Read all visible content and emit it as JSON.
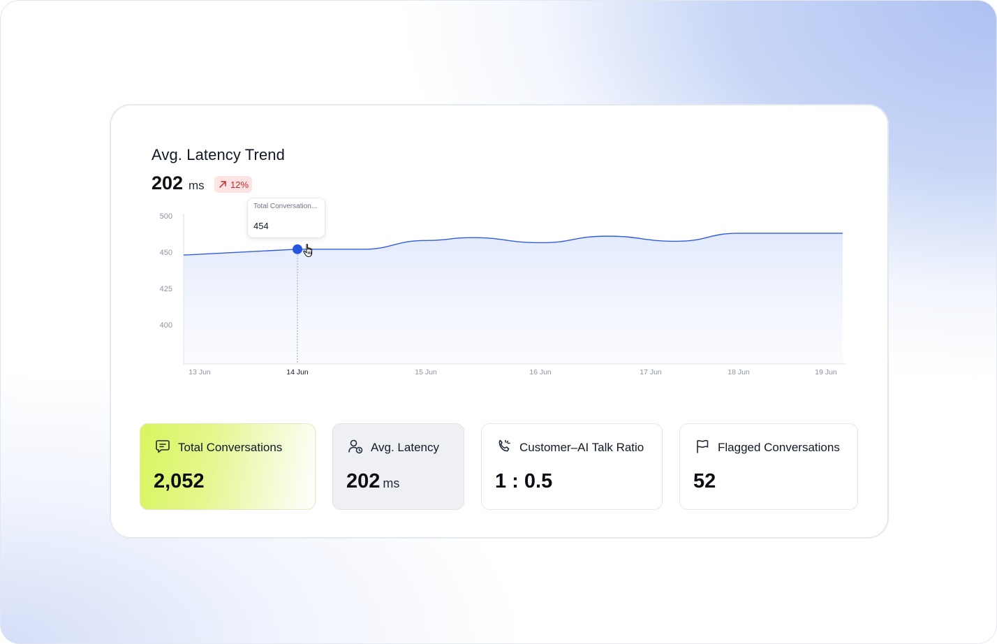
{
  "chart_card": {
    "title": "Avg. Latency Trend",
    "value": "202",
    "unit": "ms",
    "trend": {
      "label": "12%",
      "direction": "up",
      "color": "#c62828",
      "background": "#fde4e4"
    },
    "tooltip": {
      "label": "Total Conversation...",
      "value": "454"
    }
  },
  "chart_data": {
    "type": "area",
    "x": [
      "13 Jun",
      "14 Jun",
      "15 Jun",
      "16 Jun",
      "17 Jun",
      "18 Jun",
      "19 Jun"
    ],
    "y_ticks": [
      "500",
      "450",
      "425",
      "400"
    ],
    "series": [
      {
        "points": [
          {
            "x": "13 Jun",
            "y": 446
          },
          {
            "x": "14 Jun",
            "y": 454
          },
          {
            "x": "14.5 Jun",
            "y": 454
          },
          {
            "x": "15 Jun",
            "y": 466
          },
          {
            "x": "15.4 Jun",
            "y": 470
          },
          {
            "x": "16 Jun",
            "y": 463
          },
          {
            "x": "16.6 Jun",
            "y": 472
          },
          {
            "x": "17.3 Jun",
            "y": 465
          },
          {
            "x": "18 Jun",
            "y": 476
          },
          {
            "x": "19 Jun",
            "y": 476
          }
        ],
        "color": "#2f5de0"
      }
    ],
    "highlight": {
      "x": "14 Jun",
      "y": 454
    },
    "active_tick": "14 Jun",
    "grid": false
  },
  "metrics": [
    {
      "icon": "chat-message-icon",
      "label": "Total Conversations",
      "value": "2,052",
      "unit": ""
    },
    {
      "icon": "user-clock-icon",
      "label": "Avg. Latency",
      "value": "202",
      "unit": "ms"
    },
    {
      "icon": "phone-ringing-icon",
      "label": "Customer–AI Talk Ratio",
      "value": "1 : 0.5",
      "unit": ""
    },
    {
      "icon": "flag-icon",
      "label": "Flagged Conversations",
      "value": "52",
      "unit": ""
    }
  ]
}
